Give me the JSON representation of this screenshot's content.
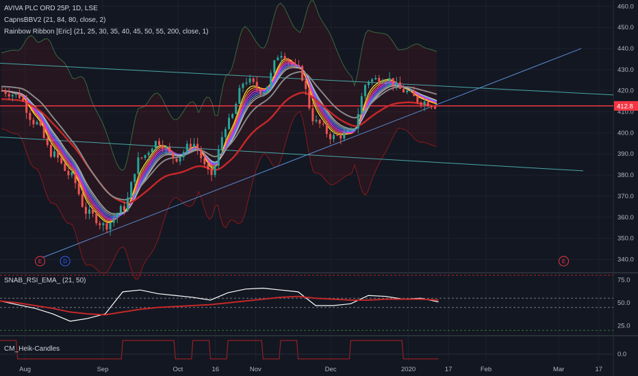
{
  "header": {
    "symbol": "AVIVA PLC ORD 25P, 1D, LSE",
    "indicator1": "CapnsBBV2 (21, 84, 80, close, 2)",
    "indicator2": "Rainbow Ribbon [Eric] (21, 25, 30, 35, 40, 45, 50, 55, 200, close, 1)"
  },
  "rsi_pane": {
    "title": "SNAB_RSI_EMA_ (21, 50)"
  },
  "heik_pane": {
    "title": "CM_Heik-Candles"
  },
  "price_badge": {
    "value": "412.8"
  },
  "event_markers": [
    {
      "label": "E",
      "date_index": 9
    },
    {
      "label": "D",
      "date_index": 15
    },
    {
      "label": "E",
      "date_index": 1
    }
  ],
  "colors": {
    "background": "#131722",
    "grid": "#1e222d",
    "up": "#26a69a",
    "down": "#ef5350",
    "price_line": "#f23645",
    "bollinger": "#8b1a1a",
    "trend_blue": "#5b8fd6",
    "trend_teal": "#4aa8a8"
  },
  "chart_data": [
    {
      "type": "candlestick",
      "title": "AVIVA PLC ORD 25P, 1D, LSE",
      "x_ticks": [
        "Aug",
        "Sep",
        "Oct",
        "16",
        "Nov",
        "Dec",
        "2020",
        "17",
        "Feb",
        "Mar",
        "17"
      ],
      "y_ticks": [
        340.0,
        350.0,
        360.0,
        370.0,
        380.0,
        390.0,
        400.0,
        410.0,
        420.0,
        430.0,
        440.0,
        450.0,
        460.0
      ],
      "ylim": [
        334,
        463
      ],
      "last_price": 412.8,
      "close_series": [
        {
          "date": "2019-07-22",
          "close": 420
        },
        {
          "date": "2019-07-29",
          "close": 418
        },
        {
          "date": "2019-08-05",
          "close": 405
        },
        {
          "date": "2019-08-12",
          "close": 390
        },
        {
          "date": "2019-08-19",
          "close": 380
        },
        {
          "date": "2019-08-26",
          "close": 362
        },
        {
          "date": "2019-09-02",
          "close": 356
        },
        {
          "date": "2019-09-09",
          "close": 364
        },
        {
          "date": "2019-09-16",
          "close": 388
        },
        {
          "date": "2019-09-23",
          "close": 396
        },
        {
          "date": "2019-09-30",
          "close": 388
        },
        {
          "date": "2019-10-07",
          "close": 395
        },
        {
          "date": "2019-10-14",
          "close": 380
        },
        {
          "date": "2019-10-21",
          "close": 405
        },
        {
          "date": "2019-10-28",
          "close": 425
        },
        {
          "date": "2019-11-04",
          "close": 420
        },
        {
          "date": "2019-11-11",
          "close": 438
        },
        {
          "date": "2019-11-18",
          "close": 430
        },
        {
          "date": "2019-11-25",
          "close": 405
        },
        {
          "date": "2019-12-02",
          "close": 398
        },
        {
          "date": "2019-12-09",
          "close": 400
        },
        {
          "date": "2019-12-16",
          "close": 425
        },
        {
          "date": "2019-12-23",
          "close": 426
        },
        {
          "date": "2019-12-30",
          "close": 420
        },
        {
          "date": "2020-01-06",
          "close": 415
        },
        {
          "date": "2020-01-13",
          "close": 412.8
        }
      ]
    },
    {
      "type": "line",
      "title": "SNAB_RSI_EMA_ (21, 50)",
      "y_ticks": [
        25.0,
        50.0,
        75.0
      ],
      "ylim": [
        15,
        82
      ],
      "levels": [
        80,
        55,
        45,
        20
      ],
      "series": [
        {
          "values": [
            52,
            48,
            44,
            38,
            30,
            33,
            38,
            62,
            64,
            60,
            58,
            56,
            53,
            61,
            65,
            66,
            64,
            62,
            47,
            47,
            49,
            58,
            57,
            54,
            55,
            51
          ]
        },
        {
          "values": [
            52,
            50,
            47,
            44,
            40,
            38,
            37,
            40,
            43,
            45,
            46,
            47,
            48,
            50,
            52,
            54,
            56,
            57,
            55,
            54,
            53,
            53,
            54,
            54,
            54,
            53
          ]
        }
      ]
    },
    {
      "type": "line",
      "title": "CM_Heik-Candles",
      "y_ticks": [
        0.0
      ],
      "ylim": [
        -1,
        1
      ]
    }
  ]
}
